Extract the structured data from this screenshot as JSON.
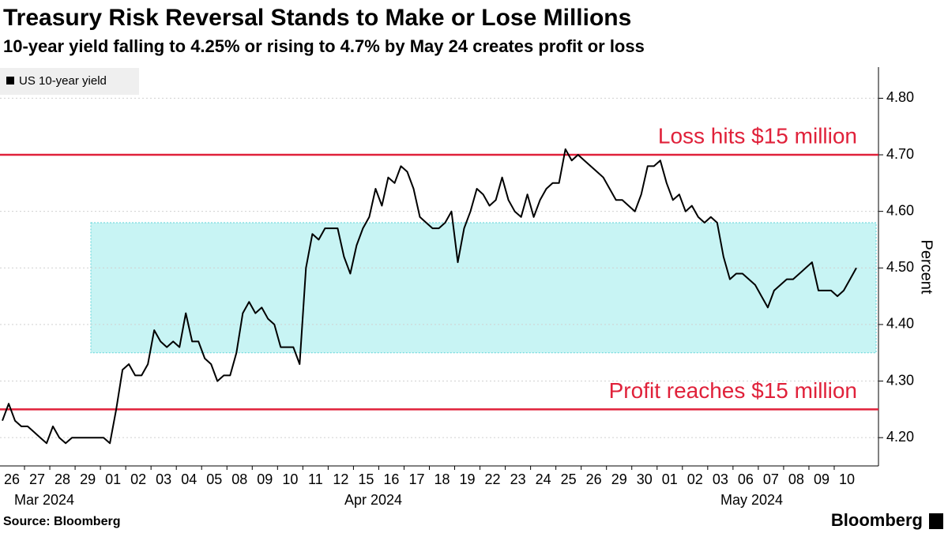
{
  "chart_data": {
    "type": "line",
    "title": "Treasury Risk Reversal Stands to Make or Lose Millions",
    "subtitle": "10-year yield falling to 4.25% or rising to 4.7% by May 24 creates profit or loss",
    "y_label": "Percent",
    "source": "Source: Bloomberg",
    "brand": "Bloomberg",
    "categories": [
      "26",
      "27",
      "28",
      "29",
      "01",
      "02",
      "03",
      "04",
      "05",
      "08",
      "09",
      "10",
      "11",
      "12",
      "15",
      "16",
      "17",
      "18",
      "19",
      "22",
      "23",
      "24",
      "25",
      "26",
      "29",
      "30",
      "01",
      "02",
      "03",
      "06",
      "07",
      "08",
      "09",
      "10"
    ],
    "months": [
      "Mar 2024",
      "Apr 2024",
      "May 2024"
    ],
    "series": [
      {
        "name": "US 10-year yield",
        "color": "#000000",
        "values": [
          [
            4.23,
            4.26,
            4.23,
            4.22
          ],
          [
            4.22,
            4.21,
            4.2,
            4.19
          ],
          [
            4.22,
            4.2,
            4.19,
            4.2
          ],
          [
            4.2,
            4.2,
            4.2,
            4.2
          ],
          [
            4.2,
            4.19,
            4.25,
            4.32
          ],
          [
            4.33,
            4.31,
            4.31,
            4.33
          ],
          [
            4.39,
            4.37,
            4.36,
            4.37
          ],
          [
            4.36,
            4.42,
            4.37,
            4.37
          ],
          [
            4.34,
            4.33,
            4.3,
            4.31
          ],
          [
            4.31,
            4.35,
            4.42,
            4.44
          ],
          [
            4.42,
            4.43,
            4.41,
            4.4
          ],
          [
            4.36,
            4.36,
            4.36,
            4.33
          ],
          [
            4.5,
            4.56,
            4.55,
            4.57
          ],
          [
            4.57,
            4.57,
            4.52,
            4.49
          ],
          [
            4.54,
            4.57,
            4.59,
            4.64
          ],
          [
            4.61,
            4.66,
            4.65,
            4.68
          ],
          [
            4.67,
            4.64,
            4.59,
            4.58
          ],
          [
            4.57,
            4.57,
            4.58,
            4.6
          ],
          [
            4.51,
            4.57,
            4.6,
            4.64
          ],
          [
            4.63,
            4.61,
            4.62,
            4.66
          ],
          [
            4.62,
            4.6,
            4.59,
            4.63
          ],
          [
            4.59,
            4.62,
            4.64,
            4.65
          ],
          [
            4.65,
            4.71,
            4.69,
            4.7
          ],
          [
            4.69,
            4.68,
            4.67,
            4.66
          ],
          [
            4.64,
            4.62,
            4.62,
            4.61
          ],
          [
            4.6,
            4.63,
            4.68,
            4.68
          ],
          [
            4.69,
            4.65,
            4.62,
            4.63
          ],
          [
            4.6,
            4.61,
            4.59,
            4.58
          ],
          [
            4.59,
            4.58,
            4.52,
            4.48
          ],
          [
            4.49,
            4.49,
            4.48,
            4.47
          ],
          [
            4.45,
            4.43,
            4.46,
            4.47
          ],
          [
            4.48,
            4.48,
            4.49,
            4.5
          ],
          [
            4.51,
            4.46,
            4.46,
            4.46
          ],
          [
            4.45,
            4.46,
            4.48,
            4.5
          ]
        ]
      }
    ],
    "ylim": [
      4.15,
      4.855
    ],
    "yticks": [
      {
        "value": 4.2,
        "label": "4.20"
      },
      {
        "value": 4.3,
        "label": "4.30"
      },
      {
        "value": 4.4,
        "label": "4.40"
      },
      {
        "value": 4.5,
        "label": "4.50"
      },
      {
        "value": 4.6,
        "label": "4.60"
      },
      {
        "value": 4.7,
        "label": "4.70"
      },
      {
        "value": 4.8,
        "label": "4.80"
      }
    ],
    "reference_lines": [
      {
        "value": 4.7,
        "label": "Loss hits $15 million",
        "color": "#e0213a"
      },
      {
        "value": 4.25,
        "label": "Profit reaches $15 million",
        "color": "#e0213a"
      }
    ],
    "band": {
      "from": 4.35,
      "to": 4.58,
      "color": "#c8f4f4"
    }
  }
}
